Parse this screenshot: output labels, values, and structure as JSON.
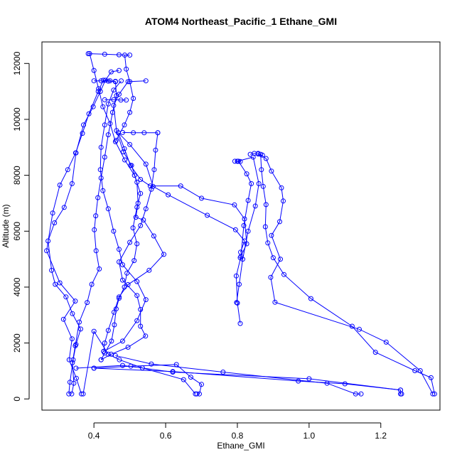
{
  "chart_data": {
    "type": "line",
    "title": "ATOM4 Northeast_Pacific_1 Ethane_GMI",
    "xlabel": "Ethane_GMI",
    "ylabel": "Altitude (m)",
    "xlim": [
      0.255,
      1.365
    ],
    "ylim": [
      -400,
      12770
    ],
    "x_ticks": [
      0.4,
      0.6,
      0.8,
      1.0,
      1.2
    ],
    "x_tick_labels": [
      "0.4",
      "0.6",
      "0.8",
      "1.0",
      "1.2"
    ],
    "y_ticks": [
      0,
      2000,
      4000,
      6000,
      8000,
      10000,
      12000
    ],
    "y_tick_labels": [
      "0",
      "2000",
      "4000",
      "6000",
      "8000",
      "10000",
      "12000"
    ],
    "grid": false,
    "marker": "open-circle",
    "color": "#0000ff",
    "series": [
      {
        "points": [
          [
            0.365,
            180
          ],
          [
            0.351,
            740
          ],
          [
            0.331,
            1400
          ],
          [
            0.339,
            2150
          ],
          [
            0.315,
            2850
          ],
          [
            0.348,
            3500
          ],
          [
            0.305,
            4150
          ],
          [
            0.268,
            5300
          ],
          [
            0.285,
            6650
          ],
          [
            0.305,
            7650
          ],
          [
            0.327,
            8200
          ],
          [
            0.349,
            8800
          ],
          [
            0.368,
            9500
          ],
          [
            0.386,
            10200
          ],
          [
            0.412,
            11000
          ],
          [
            0.426,
            11400
          ],
          [
            0.445,
            11380
          ],
          [
            0.46,
            11360
          ]
        ]
      },
      {
        "points": [
          [
            0.46,
            11360
          ],
          [
            0.463,
            10850
          ],
          [
            0.452,
            10250
          ],
          [
            0.44,
            9450
          ],
          [
            0.43,
            8650
          ],
          [
            0.42,
            7900
          ],
          [
            0.411,
            7200
          ],
          [
            0.405,
            6550
          ],
          [
            0.401,
            6050
          ],
          [
            0.406,
            5300
          ],
          [
            0.415,
            4650
          ],
          [
            0.394,
            4100
          ],
          [
            0.381,
            3450
          ],
          [
            0.359,
            2750
          ],
          [
            0.348,
            1900
          ],
          [
            0.34,
            1300
          ],
          [
            0.344,
            560
          ],
          [
            0.338,
            180
          ]
        ]
      },
      {
        "points": [
          [
            0.33,
            180
          ],
          [
            0.333,
            600
          ],
          [
            0.342,
            1400
          ],
          [
            0.35,
            1950
          ],
          [
            0.363,
            2500
          ],
          [
            0.34,
            3050
          ],
          [
            0.322,
            3650
          ],
          [
            0.292,
            4100
          ],
          [
            0.282,
            4600
          ],
          [
            0.272,
            5650
          ],
          [
            0.29,
            6300
          ],
          [
            0.317,
            6850
          ],
          [
            0.339,
            7700
          ],
          [
            0.35,
            8800
          ],
          [
            0.371,
            9800
          ],
          [
            0.398,
            10450
          ],
          [
            0.418,
            11000
          ],
          [
            0.432,
            11400
          ],
          [
            0.448,
            11700
          ],
          [
            0.47,
            11750
          ]
        ]
      },
      {
        "points": [
          [
            0.4,
            1100
          ],
          [
            0.503,
            1170
          ],
          [
            0.63,
            1230
          ],
          [
            0.67,
            780
          ],
          [
            0.7,
            520
          ],
          [
            0.694,
            180
          ],
          [
            0.687,
            180
          ]
        ]
      },
      {
        "points": [
          [
            0.4,
            1100
          ],
          [
            0.62,
            980
          ],
          [
            0.97,
            640
          ],
          [
            1.1,
            540
          ],
          [
            1.255,
            320
          ],
          [
            1.255,
            180
          ],
          [
            1.258,
            180
          ]
        ]
      },
      {
        "points": [
          [
            0.37,
            180
          ],
          [
            0.4,
            2420
          ],
          [
            0.44,
            1600
          ],
          [
            0.471,
            1400
          ],
          [
            0.535,
            1110
          ],
          [
            0.65,
            690
          ],
          [
            0.683,
            180
          ]
        ]
      },
      {
        "points": [
          [
            0.46,
            1550
          ],
          [
            0.56,
            1250
          ],
          [
            0.76,
            960
          ],
          [
            1.05,
            560
          ],
          [
            1.13,
            180
          ],
          [
            1.145,
            180
          ]
        ]
      },
      {
        "points": [
          [
            0.35,
            1100
          ],
          [
            0.48,
            1200
          ],
          [
            0.62,
            960
          ],
          [
            1.0,
            720
          ],
          [
            1.255,
            320
          ]
        ]
      },
      {
        "points": [
          [
            1.35,
            180
          ],
          [
            1.34,
            760
          ],
          [
            1.295,
            1010
          ],
          [
            1.185,
            1670
          ],
          [
            1.12,
            2600
          ],
          [
            1.005,
            3590
          ],
          [
            0.93,
            4450
          ],
          [
            0.9,
            5050
          ],
          [
            0.885,
            5580
          ],
          [
            0.878,
            6160
          ],
          [
            0.88,
            6950
          ],
          [
            0.872,
            7600
          ],
          [
            0.867,
            8200
          ],
          [
            0.865,
            8750
          ]
        ]
      },
      {
        "points": [
          [
            1.345,
            180
          ],
          [
            1.31,
            1010
          ],
          [
            1.215,
            2030
          ],
          [
            1.14,
            2490
          ],
          [
            0.905,
            3460
          ],
          [
            0.893,
            4350
          ],
          [
            0.92,
            5000
          ],
          [
            0.895,
            5850
          ],
          [
            0.918,
            6340
          ],
          [
            0.928,
            7080
          ],
          [
            0.923,
            7550
          ],
          [
            0.895,
            8150
          ],
          [
            0.88,
            8600
          ],
          [
            0.858,
            8780
          ]
        ]
      },
      {
        "points": [
          [
            0.808,
            2700
          ],
          [
            0.8,
            3430
          ],
          [
            0.797,
            4400
          ],
          [
            0.81,
            5100
          ],
          [
            0.818,
            6200
          ],
          [
            0.83,
            7100
          ],
          [
            0.839,
            7700
          ],
          [
            0.826,
            8050
          ],
          [
            0.803,
            8500
          ]
        ]
      },
      {
        "points": [
          [
            0.8,
            8500
          ],
          [
            0.844,
            8650
          ],
          [
            0.86,
            7700
          ],
          [
            0.85,
            6900
          ],
          [
            0.83,
            6000
          ],
          [
            0.815,
            5000
          ],
          [
            0.805,
            4100
          ],
          [
            0.798,
            3450
          ]
        ]
      },
      {
        "points": [
          [
            0.468,
            9520
          ],
          [
            0.485,
            8950
          ],
          [
            0.502,
            8350
          ],
          [
            0.53,
            7850
          ],
          [
            0.557,
            7620
          ],
          [
            0.642,
            7620
          ],
          [
            0.7,
            7180
          ],
          [
            0.792,
            6940
          ],
          [
            0.82,
            6440
          ],
          [
            0.826,
            5550
          ],
          [
            0.808,
            5050
          ]
        ]
      },
      {
        "points": [
          [
            0.468,
            9520
          ],
          [
            0.5,
            9100
          ],
          [
            0.545,
            8400
          ],
          [
            0.565,
            7600
          ],
          [
            0.607,
            7300
          ],
          [
            0.716,
            6570
          ],
          [
            0.795,
            6050
          ],
          [
            0.82,
            5650
          ],
          [
            0.809,
            5250
          ]
        ]
      },
      {
        "points": [
          [
            0.545,
            11380
          ],
          [
            0.495,
            11350
          ],
          [
            0.47,
            10900
          ],
          [
            0.455,
            10500
          ],
          [
            0.463,
            9600
          ],
          [
            0.482,
            8840
          ],
          [
            0.505,
            8350
          ],
          [
            0.52,
            7750
          ],
          [
            0.523,
            7000
          ],
          [
            0.517,
            6500
          ],
          [
            0.538,
            6400
          ],
          [
            0.567,
            5830
          ],
          [
            0.595,
            5170
          ],
          [
            0.554,
            4600
          ],
          [
            0.495,
            4090
          ],
          [
            0.47,
            3650
          ],
          [
            0.456,
            3100
          ],
          [
            0.44,
            2450
          ],
          [
            0.43,
            2000
          ],
          [
            0.427,
            1700
          ]
        ]
      },
      {
        "points": [
          [
            0.427,
            1700
          ],
          [
            0.48,
            2070
          ],
          [
            0.52,
            2800
          ],
          [
            0.545,
            3550
          ],
          [
            0.52,
            4200
          ],
          [
            0.48,
            4800
          ],
          [
            0.47,
            5350
          ],
          [
            0.455,
            6000
          ],
          [
            0.44,
            6800
          ],
          [
            0.425,
            7450
          ],
          [
            0.418,
            8200
          ],
          [
            0.42,
            9000
          ],
          [
            0.43,
            9800
          ],
          [
            0.44,
            10550
          ],
          [
            0.455,
            11050
          ],
          [
            0.476,
            11380
          ]
        ]
      },
      {
        "points": [
          [
            0.462,
            9250
          ],
          [
            0.485,
            9800
          ],
          [
            0.5,
            10250
          ],
          [
            0.51,
            10750
          ],
          [
            0.5,
            11350
          ],
          [
            0.49,
            11800
          ],
          [
            0.486,
            12300
          ]
        ]
      },
      {
        "points": [
          [
            0.388,
            12350
          ],
          [
            0.4,
            11750
          ],
          [
            0.413,
            11100
          ],
          [
            0.425,
            10450
          ],
          [
            0.445,
            9850
          ],
          [
            0.46,
            9200
          ],
          [
            0.486,
            8550
          ],
          [
            0.513,
            8000
          ],
          [
            0.53,
            7350
          ],
          [
            0.52,
            6860
          ],
          [
            0.509,
            6120
          ],
          [
            0.52,
            5550
          ],
          [
            0.512,
            4950
          ],
          [
            0.492,
            4500
          ],
          [
            0.485,
            4000
          ],
          [
            0.47,
            3600
          ],
          [
            0.462,
            3220
          ],
          [
            0.457,
            2650
          ],
          [
            0.449,
            2070
          ],
          [
            0.43,
            1640
          ],
          [
            0.42,
            1400
          ]
        ]
      },
      {
        "points": [
          [
            0.42,
            1400
          ],
          [
            0.448,
            1600
          ],
          [
            0.495,
            1850
          ],
          [
            0.544,
            2250
          ],
          [
            0.53,
            2600
          ],
          [
            0.53,
            3200
          ],
          [
            0.52,
            3700
          ],
          [
            0.48,
            4250
          ],
          [
            0.47,
            4900
          ],
          [
            0.5,
            5600
          ],
          [
            0.53,
            6200
          ],
          [
            0.545,
            6800
          ],
          [
            0.56,
            7500
          ],
          [
            0.568,
            8200
          ],
          [
            0.572,
            8900
          ],
          [
            0.578,
            9520
          ]
        ]
      },
      {
        "points": [
          [
            0.384,
            12350
          ],
          [
            0.43,
            12330
          ],
          [
            0.47,
            12310
          ],
          [
            0.5,
            12300
          ]
        ]
      },
      {
        "points": [
          [
            0.4,
            11380
          ],
          [
            0.42,
            11380
          ],
          [
            0.44,
            11370
          ],
          [
            0.46,
            11350
          ]
        ]
      },
      {
        "points": [
          [
            0.43,
            10700
          ],
          [
            0.455,
            10700
          ],
          [
            0.475,
            10690
          ],
          [
            0.49,
            10690
          ]
        ]
      },
      {
        "points": [
          [
            0.48,
            9530
          ],
          [
            0.51,
            9520
          ],
          [
            0.54,
            9520
          ],
          [
            0.578,
            9520
          ]
        ]
      },
      {
        "points": [
          [
            0.836,
            8750
          ],
          [
            0.847,
            8780
          ],
          [
            0.858,
            8760
          ],
          [
            0.87,
            8720
          ]
        ]
      },
      {
        "points": [
          [
            0.793,
            8500
          ],
          [
            0.8,
            8500
          ],
          [
            0.808,
            8490
          ]
        ]
      }
    ]
  }
}
